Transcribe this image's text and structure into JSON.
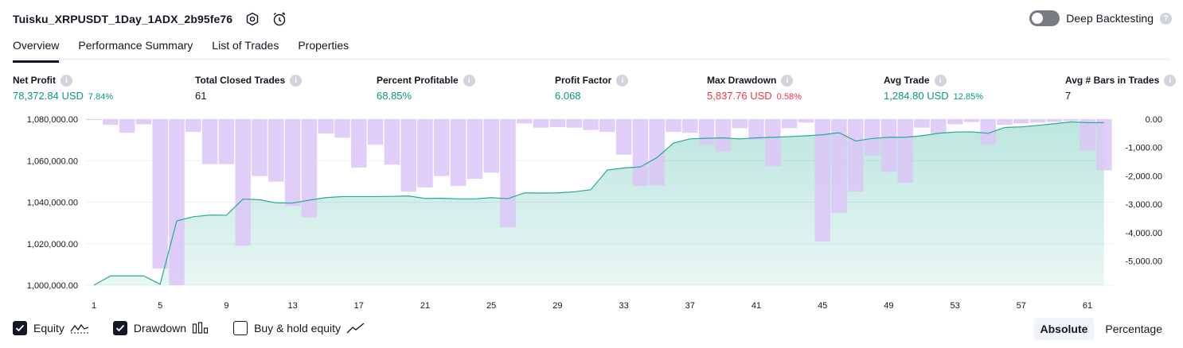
{
  "header": {
    "strategy_title": "Tuisku_XRPUSDT_1Day_1ADX_2b95fe76",
    "deep_backtesting_label": "Deep Backtesting",
    "help_glyph": "?"
  },
  "tabs": [
    {
      "label": "Overview",
      "active": true
    },
    {
      "label": "Performance Summary",
      "active": false
    },
    {
      "label": "List of Trades",
      "active": false
    },
    {
      "label": "Properties",
      "active": false
    }
  ],
  "metrics": {
    "net_profit": {
      "label": "Net Profit",
      "value": "78,372.84 USD",
      "pct": "7.84%"
    },
    "total_closed_trades": {
      "label": "Total Closed Trades",
      "value": "61"
    },
    "percent_profitable": {
      "label": "Percent Profitable",
      "value": "68.85%"
    },
    "profit_factor": {
      "label": "Profit Factor",
      "value": "6.068"
    },
    "max_drawdown": {
      "label": "Max Drawdown",
      "value": "5,837.76 USD",
      "pct": "0.58%"
    },
    "avg_trade": {
      "label": "Avg Trade",
      "value": "1,284.80 USD",
      "pct": "12.85%"
    },
    "avg_bars": {
      "label": "Avg # Bars in Trades",
      "value": "7"
    }
  },
  "colors": {
    "positive": "#089981",
    "negative": "#f23645",
    "equity_line": "#22ab94",
    "drawdown_bar": "#dcc6f7",
    "drawdown_overlap": "#b8b9e6"
  },
  "chart_data": {
    "type": "area",
    "x_ticks": [
      "1",
      "5",
      "9",
      "13",
      "17",
      "21",
      "25",
      "29",
      "33",
      "37",
      "41",
      "45",
      "49",
      "53",
      "57",
      "61"
    ],
    "left_axis_ticks": [
      "1,080,000.00",
      "1,060,000.00",
      "1,040,000.00",
      "1,020,000.00",
      "1,000,000.00"
    ],
    "right_axis_ticks": [
      "0.00",
      "-1,000.00",
      "-2,000.00",
      "-3,000.00",
      "-4,000.00",
      "-5,000.00"
    ],
    "ylim_equity": [
      1000000,
      1080000
    ],
    "ylim_drawdown": [
      -5837.76,
      0
    ],
    "series": [
      {
        "name": "Equity",
        "x": [
          1,
          2,
          3,
          4,
          5,
          6,
          7,
          8,
          9,
          10,
          11,
          12,
          13,
          14,
          15,
          16,
          17,
          18,
          19,
          20,
          21,
          22,
          23,
          24,
          25,
          26,
          27,
          28,
          29,
          30,
          31,
          32,
          33,
          34,
          35,
          36,
          37,
          38,
          39,
          40,
          41,
          42,
          43,
          44,
          45,
          46,
          47,
          48,
          49,
          50,
          51,
          52,
          53,
          54,
          55,
          56,
          57,
          58,
          59,
          60,
          61,
          62
        ],
        "values": [
          1000000,
          1004500,
          1004500,
          1004500,
          1000500,
          1031000,
          1033000,
          1033800,
          1033700,
          1041500,
          1041200,
          1039700,
          1039600,
          1041000,
          1042200,
          1042700,
          1042700,
          1042700,
          1042800,
          1043000,
          1041800,
          1041900,
          1041600,
          1041600,
          1042200,
          1041700,
          1044500,
          1044400,
          1044500,
          1045000,
          1046000,
          1055500,
          1056500,
          1057000,
          1061500,
          1068500,
          1070500,
          1070800,
          1071000,
          1070500,
          1071000,
          1071300,
          1071600,
          1072000,
          1072500,
          1073500,
          1069500,
          1070700,
          1071300,
          1071300,
          1072000,
          1073200,
          1073800,
          1073900,
          1073200,
          1076000,
          1076300,
          1077000,
          1077800,
          1078700,
          1078300,
          1078372.84
        ]
      },
      {
        "name": "Drawdown",
        "x": [
          1,
          2,
          3,
          4,
          5,
          6,
          7,
          8,
          9,
          10,
          11,
          12,
          13,
          14,
          15,
          16,
          17,
          18,
          19,
          20,
          21,
          22,
          23,
          24,
          25,
          26,
          27,
          28,
          29,
          30,
          31,
          32,
          33,
          34,
          35,
          36,
          37,
          38,
          39,
          40,
          41,
          42,
          43,
          44,
          45,
          46,
          47,
          48,
          49,
          50,
          51,
          52,
          53,
          54,
          55,
          56,
          57,
          58,
          59,
          60,
          61,
          62
        ],
        "values": [
          -10,
          -200,
          -480,
          -180,
          -5250,
          -5837.76,
          -450,
          -1580,
          -1580,
          -4450,
          -2000,
          -2200,
          -3050,
          -3450,
          -500,
          -650,
          -1700,
          -900,
          -1600,
          -2550,
          -2400,
          -2000,
          -2350,
          -2100,
          -1880,
          -3800,
          -150,
          -300,
          -280,
          -300,
          -380,
          -450,
          -1250,
          -2350,
          -2330,
          -450,
          -480,
          -900,
          -1150,
          -320,
          -720,
          -1650,
          -320,
          -120,
          -4300,
          -3300,
          -2550,
          -1280,
          -1850,
          -2230,
          -300,
          -500,
          -180,
          -100,
          -900,
          -200,
          -150,
          -120,
          -100,
          -60,
          -1100,
          -1800
        ]
      }
    ],
    "legend": [
      {
        "name": "Equity",
        "checked": true,
        "icon": "equity-line-icon"
      },
      {
        "name": "Drawdown",
        "checked": true,
        "icon": "drawdown-bars-icon"
      },
      {
        "name": "Buy & hold equity",
        "checked": false,
        "icon": "buy-hold-line-icon"
      }
    ],
    "grid": true
  },
  "mode": {
    "absolute": "Absolute",
    "percentage": "Percentage",
    "selected": "Absolute"
  }
}
